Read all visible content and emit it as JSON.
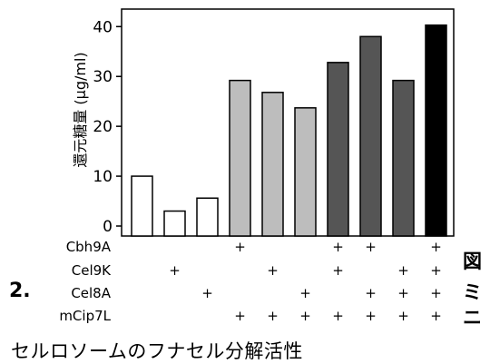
{
  "chart_data": {
    "type": "bar",
    "ylabel": "還元糖量 (μg/ml)",
    "ylim": [
      0,
      43
    ],
    "yticks": [
      0,
      10,
      20,
      30,
      40
    ],
    "grid": false,
    "bars": [
      {
        "value": 10,
        "fill": "#ffffff",
        "plus": [
          false,
          false,
          false,
          false
        ]
      },
      {
        "value": 3,
        "fill": "#ffffff",
        "plus": [
          false,
          true,
          false,
          false
        ]
      },
      {
        "value": 5.6,
        "fill": "#ffffff",
        "plus": [
          false,
          false,
          true,
          false
        ]
      },
      {
        "value": 29.2,
        "fill": "#bdbdbd",
        "plus": [
          true,
          false,
          false,
          true
        ]
      },
      {
        "value": 26.8,
        "fill": "#bdbdbd",
        "plus": [
          false,
          true,
          false,
          true
        ]
      },
      {
        "value": 23.7,
        "fill": "#bdbdbd",
        "plus": [
          false,
          false,
          true,
          true
        ]
      },
      {
        "value": 32.8,
        "fill": "#555555",
        "plus": [
          true,
          true,
          false,
          true
        ]
      },
      {
        "value": 38,
        "fill": "#555555",
        "plus": [
          true,
          false,
          true,
          true
        ]
      },
      {
        "value": 29.2,
        "fill": "#555555",
        "plus": [
          false,
          true,
          true,
          true
        ]
      },
      {
        "value": 40.3,
        "fill": "#000000",
        "plus": [
          true,
          true,
          true,
          true
        ]
      }
    ],
    "components": [
      "Cbh9A",
      "Cel9K",
      "Cel8A",
      "mCip7L"
    ],
    "plus_symbol": "+"
  },
  "figure_number": "2.",
  "side_title": [
    "図",
    "ミ",
    "ニ"
  ],
  "caption": "セルロソームのフナセル分解活性"
}
